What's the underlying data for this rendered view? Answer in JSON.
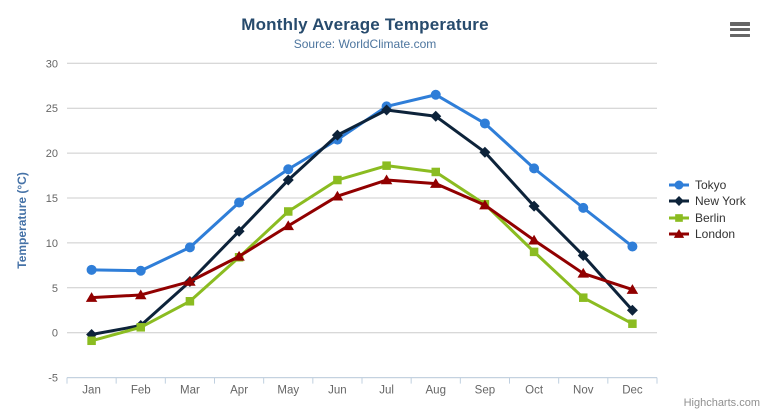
{
  "chart_data": {
    "type": "line",
    "title": "Monthly Average Temperature",
    "subtitle": "Source: WorldClimate.com",
    "categories": [
      "Jan",
      "Feb",
      "Mar",
      "Apr",
      "May",
      "Jun",
      "Jul",
      "Aug",
      "Sep",
      "Oct",
      "Nov",
      "Dec"
    ],
    "xlabel": "",
    "ylabel": "Temperature (°C)",
    "ylim": [
      -5,
      30
    ],
    "ytick_interval": 5,
    "grid": true,
    "legend_position": "right",
    "series": [
      {
        "name": "Tokyo",
        "color": "#2f7ed8",
        "marker": "circle",
        "values": [
          7.0,
          6.9,
          9.5,
          14.5,
          18.2,
          21.5,
          25.2,
          26.5,
          23.3,
          18.3,
          13.9,
          9.6
        ]
      },
      {
        "name": "New York",
        "color": "#0d233a",
        "marker": "diamond",
        "values": [
          -0.2,
          0.8,
          5.7,
          11.3,
          17.0,
          22.0,
          24.8,
          24.1,
          20.1,
          14.1,
          8.6,
          2.5
        ]
      },
      {
        "name": "Berlin",
        "color": "#8bbc21",
        "marker": "square",
        "values": [
          -0.9,
          0.6,
          3.5,
          8.4,
          13.5,
          17.0,
          18.6,
          17.9,
          14.3,
          9.0,
          3.9,
          1.0
        ]
      },
      {
        "name": "London",
        "color": "#910000",
        "marker": "triangle",
        "values": [
          3.9,
          4.2,
          5.7,
          8.5,
          11.9,
          15.2,
          17.0,
          16.6,
          14.2,
          10.3,
          6.6,
          4.8
        ]
      }
    ]
  },
  "credits": {
    "label": "Highcharts.com"
  },
  "theme": {
    "background": "#ffffff",
    "title_color": "#274b6d",
    "subtitle_color": "#4d759e",
    "axis_title_color": "#4572a7",
    "axis_label_color": "#666666",
    "grid_color": "#cccccc",
    "axis_line_color": "#c0d0e0",
    "legend_label_color": "#333333",
    "credits_color": "#909090",
    "menu_icon_color": "#666666"
  }
}
